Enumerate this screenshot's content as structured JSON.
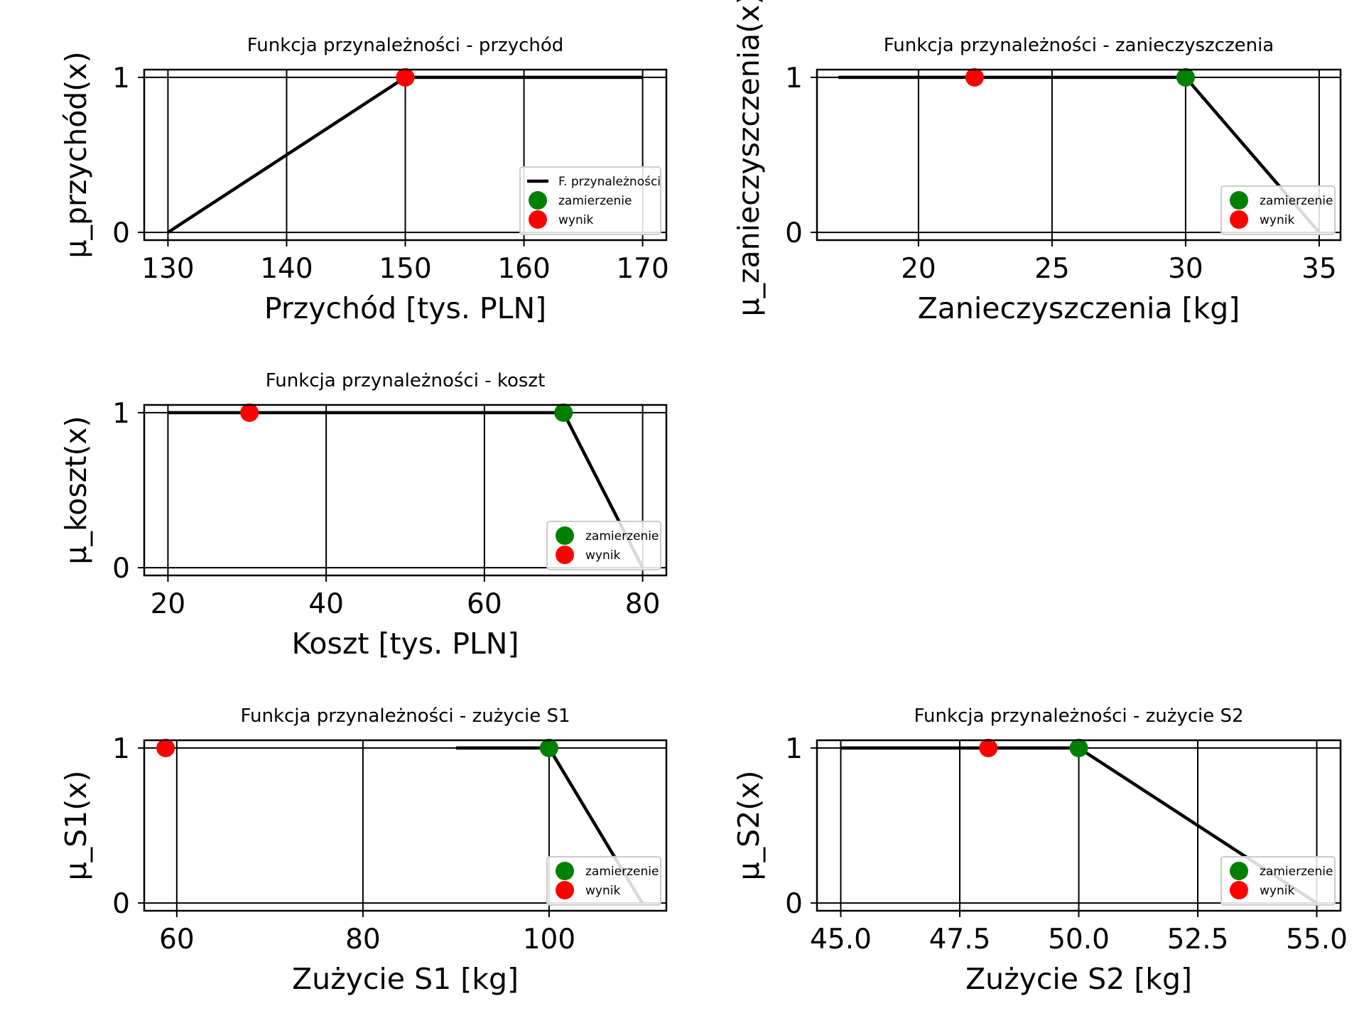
{
  "charts": [
    {
      "title": "Funkcja przynależności - przychód",
      "xlabel": "Przychód [tys. PLN]",
      "ylabel": "μ_przychód(x)",
      "xticks": [
        "130",
        "140",
        "150",
        "160",
        "170"
      ],
      "yticks": [
        "0",
        "1"
      ],
      "legend": [
        "F. przynależności",
        "zamierzenie",
        "wynik"
      ]
    },
    {
      "title": "Funkcja przynależności - zanieczyszczenia",
      "xlabel": "Zanieczyszczenia [kg]",
      "ylabel": "μ_zanieczyszczenia(x)",
      "xticks": [
        "20",
        "25",
        "30",
        "35"
      ],
      "yticks": [
        "0",
        "1"
      ],
      "legend": [
        "zamierzenie",
        "wynik"
      ]
    },
    {
      "title": "Funkcja przynależności - koszt",
      "xlabel": "Koszt [tys. PLN]",
      "ylabel": "μ_koszt(x)",
      "xticks": [
        "20",
        "40",
        "60",
        "80"
      ],
      "yticks": [
        "0",
        "1"
      ],
      "legend": [
        "zamierzenie",
        "wynik"
      ]
    },
    {
      "title": "Funkcja przynależności - zużycie S1",
      "xlabel": "Zużycie S1 [kg]",
      "ylabel": "μ_S1(x)",
      "xticks": [
        "60",
        "80",
        "100"
      ],
      "yticks": [
        "0",
        "1"
      ],
      "legend": [
        "zamierzenie",
        "wynik"
      ]
    },
    {
      "title": "Funkcja przynależności - zużycie S2",
      "xlabel": "Zużycie S2 [kg]",
      "ylabel": "μ_S2(x)",
      "xticks": [
        "45.0",
        "47.5",
        "50.0",
        "52.5",
        "55.0"
      ],
      "yticks": [
        "0",
        "1"
      ],
      "legend": [
        "zamierzenie",
        "wynik"
      ]
    }
  ],
  "chart_data": [
    {
      "type": "line",
      "title": "Funkcja przynależności - przychód",
      "xlabel": "Przychód [tys. PLN]",
      "ylabel": "μ_przychód(x)",
      "xlim": [
        128,
        172
      ],
      "ylim": [
        -0.05,
        1.05
      ],
      "xticks": [
        130,
        140,
        150,
        160,
        170
      ],
      "yticks": [
        0,
        1
      ],
      "grid": true,
      "legend_position": "lower-right",
      "series": [
        {
          "name": "F. przynależności",
          "kind": "line",
          "color": "#000000",
          "x": [
            130,
            150,
            170
          ],
          "y": [
            0,
            1,
            1
          ]
        },
        {
          "name": "zamierzenie",
          "kind": "point",
          "color": "#008000",
          "x": [
            150
          ],
          "y": [
            1
          ]
        },
        {
          "name": "wynik",
          "kind": "point",
          "color": "#ff0000",
          "x": [
            150
          ],
          "y": [
            1
          ]
        }
      ]
    },
    {
      "type": "line",
      "title": "Funkcja przynależności - zanieczyszczenia",
      "xlabel": "Zanieczyszczenia [kg]",
      "ylabel": "μ_zanieczyszczenia(x)",
      "xlim": [
        16.2,
        35.8
      ],
      "ylim": [
        -0.05,
        1.05
      ],
      "xticks": [
        20,
        25,
        30,
        35
      ],
      "yticks": [
        0,
        1
      ],
      "grid": true,
      "legend_position": "lower-right",
      "series": [
        {
          "name": "",
          "kind": "line",
          "color": "#000000",
          "x": [
            17,
            30,
            35
          ],
          "y": [
            1,
            1,
            0
          ]
        },
        {
          "name": "zamierzenie",
          "kind": "point",
          "color": "#008000",
          "x": [
            30
          ],
          "y": [
            1
          ]
        },
        {
          "name": "wynik",
          "kind": "point",
          "color": "#ff0000",
          "x": [
            22.1
          ],
          "y": [
            1
          ]
        }
      ]
    },
    {
      "type": "line",
      "title": "Funkcja przynależności - koszt",
      "xlabel": "Koszt [tys. PLN]",
      "ylabel": "μ_koszt(x)",
      "xlim": [
        17,
        83
      ],
      "ylim": [
        -0.05,
        1.05
      ],
      "xticks": [
        20,
        40,
        60,
        80
      ],
      "yticks": [
        0,
        1
      ],
      "grid": true,
      "legend_position": "lower-right",
      "series": [
        {
          "name": "",
          "kind": "line",
          "color": "#000000",
          "x": [
            20,
            70,
            80
          ],
          "y": [
            1,
            1,
            0
          ]
        },
        {
          "name": "zamierzenie",
          "kind": "point",
          "color": "#008000",
          "x": [
            70
          ],
          "y": [
            1
          ]
        },
        {
          "name": "wynik",
          "kind": "point",
          "color": "#ff0000",
          "x": [
            30.3
          ],
          "y": [
            1
          ]
        }
      ]
    },
    {
      "type": "line",
      "title": "Funkcja przynależności - zużycie S1",
      "xlabel": "Zużycie S1 [kg]",
      "ylabel": "μ_S1(x)",
      "xlim": [
        56.5,
        112.6
      ],
      "ylim": [
        -0.05,
        1.05
      ],
      "xticks": [
        60,
        80,
        100
      ],
      "yticks": [
        0,
        1
      ],
      "grid": true,
      "legend_position": "lower-right",
      "series": [
        {
          "name": "",
          "kind": "line",
          "color": "#000000",
          "x": [
            90,
            100,
            110
          ],
          "y": [
            1,
            1,
            0
          ]
        },
        {
          "name": "zamierzenie",
          "kind": "point",
          "color": "#008000",
          "x": [
            100
          ],
          "y": [
            1
          ]
        },
        {
          "name": "wynik",
          "kind": "point",
          "color": "#ff0000",
          "x": [
            58.8
          ],
          "y": [
            1
          ]
        }
      ]
    },
    {
      "type": "line",
      "title": "Funkcja przynależności - zużycie S2",
      "xlabel": "Zużycie S2 [kg]",
      "ylabel": "μ_S2(x)",
      "xlim": [
        44.5,
        55.5
      ],
      "ylim": [
        -0.05,
        1.05
      ],
      "xticks": [
        45.0,
        47.5,
        50.0,
        52.5,
        55.0
      ],
      "yticks": [
        0,
        1
      ],
      "grid": true,
      "legend_position": "lower-right",
      "series": [
        {
          "name": "",
          "kind": "line",
          "color": "#000000",
          "x": [
            45,
            50,
            55
          ],
          "y": [
            1,
            1,
            0
          ]
        },
        {
          "name": "zamierzenie",
          "kind": "point",
          "color": "#008000",
          "x": [
            50
          ],
          "y": [
            1
          ]
        },
        {
          "name": "wynik",
          "kind": "point",
          "color": "#ff0000",
          "x": [
            48.1
          ],
          "y": [
            1
          ]
        }
      ]
    }
  ]
}
